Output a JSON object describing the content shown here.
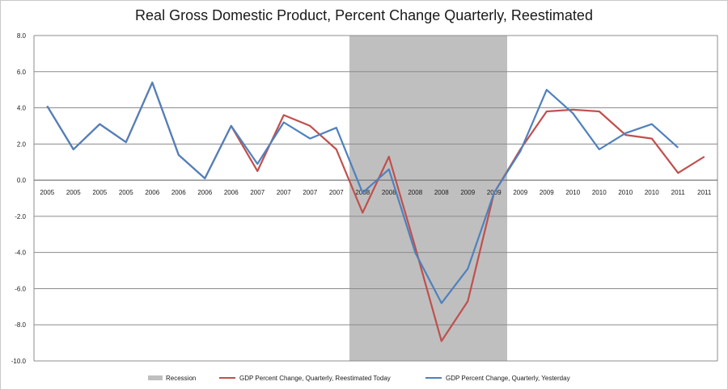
{
  "chart_data": {
    "type": "line",
    "title": "Real Gross Domestic Product, Percent Change Quarterly, Reestimated",
    "xlabel": "",
    "ylabel": "",
    "ylim": [
      -10,
      8
    ],
    "yticks": [
      "8.0",
      "6.0",
      "4.0",
      "2.0",
      "0.0",
      "-2.0",
      "-4.0",
      "-6.0",
      "-8.0",
      "-10.0"
    ],
    "categories": [
      "2005",
      "2005",
      "2005",
      "2005",
      "2006",
      "2006",
      "2006",
      "2006",
      "2007",
      "2007",
      "2007",
      "2007",
      "2008",
      "2008",
      "2008",
      "2008",
      "2009",
      "2009",
      "2009",
      "2009",
      "2010",
      "2010",
      "2010",
      "2010",
      "2011",
      "2011"
    ],
    "grid": true,
    "legend_position": "bottom",
    "recession": {
      "name": "Recession",
      "start_index": 11.5,
      "end_index": 17.5,
      "color": "#bfbfbf"
    },
    "series": [
      {
        "name": "GDP Percent Change, Quarterly, Reestimated Today",
        "color": "#c0504d",
        "values": [
          4.1,
          1.7,
          3.1,
          2.1,
          5.4,
          1.4,
          0.1,
          3.0,
          0.5,
          3.6,
          3.0,
          1.7,
          -1.8,
          1.3,
          -3.7,
          -8.9,
          -6.7,
          -0.7,
          1.7,
          3.8,
          3.9,
          3.8,
          2.5,
          2.3,
          0.4,
          1.3
        ]
      },
      {
        "name": "GDP Percent Change, Quarterly, Yesterday",
        "color": "#4f81bd",
        "values": [
          4.1,
          1.7,
          3.1,
          2.1,
          5.4,
          1.4,
          0.1,
          3.0,
          0.9,
          3.2,
          2.3,
          2.9,
          -0.7,
          0.6,
          -4.0,
          -6.8,
          -4.9,
          -0.7,
          1.6,
          5.0,
          3.7,
          1.7,
          2.6,
          3.1,
          1.8,
          null
        ]
      }
    ]
  }
}
